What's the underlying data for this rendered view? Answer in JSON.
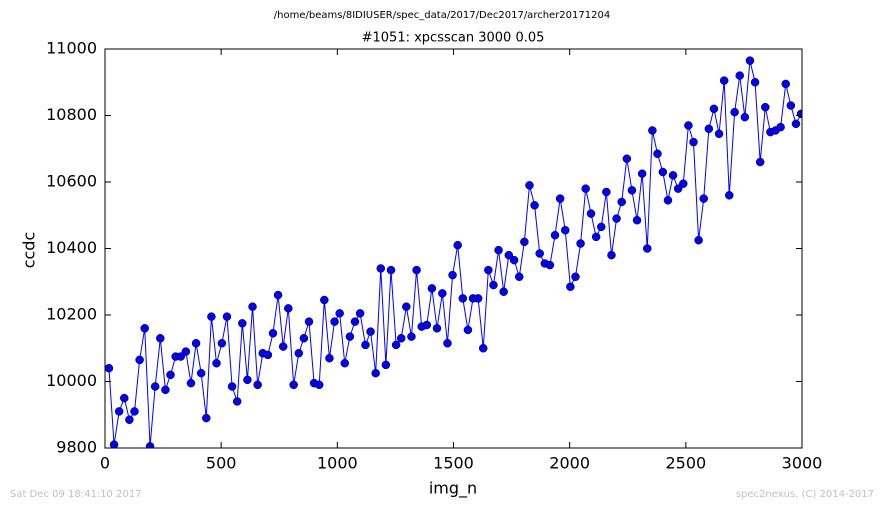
{
  "chart_data": {
    "type": "line",
    "header": "/home/beams/8IDIUSER/spec_data/2017/Dec2017/archer20171204",
    "title": "#1051: xpcsscan 3000 0.05",
    "xlabel": "img_n",
    "ylabel": "ccdc",
    "footer_left": "Sat Dec 09 18:41:10 2017",
    "footer_right": "spec2nexus, (C) 2014-2017",
    "color": "#0000ff",
    "xlim": [
      0,
      3000
    ],
    "xticks": [
      0,
      500,
      1000,
      1500,
      2000,
      2500,
      3000
    ],
    "ylim": [
      9800,
      11000
    ],
    "yticks": [
      9800,
      10000,
      10200,
      10400,
      10600,
      10800,
      11000
    ],
    "x": [
      17,
      39,
      61,
      83,
      105,
      127,
      149,
      171,
      194,
      216,
      238,
      260,
      282,
      304,
      326,
      348,
      370,
      392,
      414,
      436,
      458,
      480,
      503,
      525,
      547,
      569,
      591,
      613,
      635,
      657,
      679,
      701,
      723,
      745,
      767,
      789,
      812,
      834,
      856,
      878,
      900,
      922,
      944,
      966,
      988,
      1010,
      1032,
      1054,
      1076,
      1098,
      1121,
      1143,
      1165,
      1187,
      1209,
      1231,
      1253,
      1275,
      1297,
      1319,
      1341,
      1363,
      1385,
      1407,
      1429,
      1452,
      1474,
      1496,
      1518,
      1540,
      1562,
      1584,
      1606,
      1628,
      1650,
      1672,
      1694,
      1716,
      1738,
      1761,
      1783,
      1805,
      1827,
      1849,
      1871,
      1893,
      1915,
      1937,
      1959,
      1981,
      2003,
      2025,
      2047,
      2069,
      2092,
      2114,
      2136,
      2158,
      2180,
      2202,
      2224,
      2246,
      2268,
      2290,
      2312,
      2334,
      2356,
      2378,
      2401,
      2423,
      2445,
      2467,
      2489,
      2511,
      2533,
      2555,
      2577,
      2599,
      2621,
      2643,
      2665,
      2687,
      2710,
      2732,
      2754,
      2776,
      2798,
      2820,
      2842,
      2864,
      2886,
      2908,
      2930,
      2952,
      2974,
      2996
    ],
    "values": [
      10040,
      9810,
      9910,
      9950,
      9885,
      9910,
      10065,
      10160,
      9805,
      9985,
      10130,
      9975,
      10020,
      10075,
      10075,
      10090,
      9995,
      10115,
      10025,
      9890,
      10195,
      10055,
      10115,
      10195,
      9985,
      9940,
      10175,
      10005,
      10225,
      9990,
      10085,
      10080,
      10145,
      10260,
      10105,
      10220,
      9990,
      10085,
      10130,
      10180,
      9995,
      9990,
      10245,
      10070,
      10180,
      10205,
      10055,
      10135,
      10180,
      10205,
      10110,
      10150,
      10025,
      10340,
      10050,
      10335,
      10110,
      10130,
      10225,
      10135,
      10335,
      10165,
      10170,
      10280,
      10160,
      10265,
      10115,
      10320,
      10410,
      10250,
      10155,
      10250,
      10250,
      10100,
      10335,
      10290,
      10395,
      10270,
      10380,
      10365,
      10315,
      10420,
      10590,
      10530,
      10385,
      10355,
      10350,
      10440,
      10550,
      10455,
      10285,
      10315,
      10415,
      10580,
      10505,
      10435,
      10465,
      10570,
      10380,
      10490,
      10540,
      10670,
      10575,
      10485,
      10625,
      10400,
      10755,
      10685,
      10630,
      10545,
      10620,
      10580,
      10595,
      10770,
      10720,
      10425,
      10550,
      10760,
      10820,
      10745,
      10905,
      10560,
      10810,
      10920,
      10795,
      10965,
      10900,
      10660,
      10825,
      10750,
      10755,
      10765,
      10895,
      10830,
      10775,
      10805
    ]
  }
}
